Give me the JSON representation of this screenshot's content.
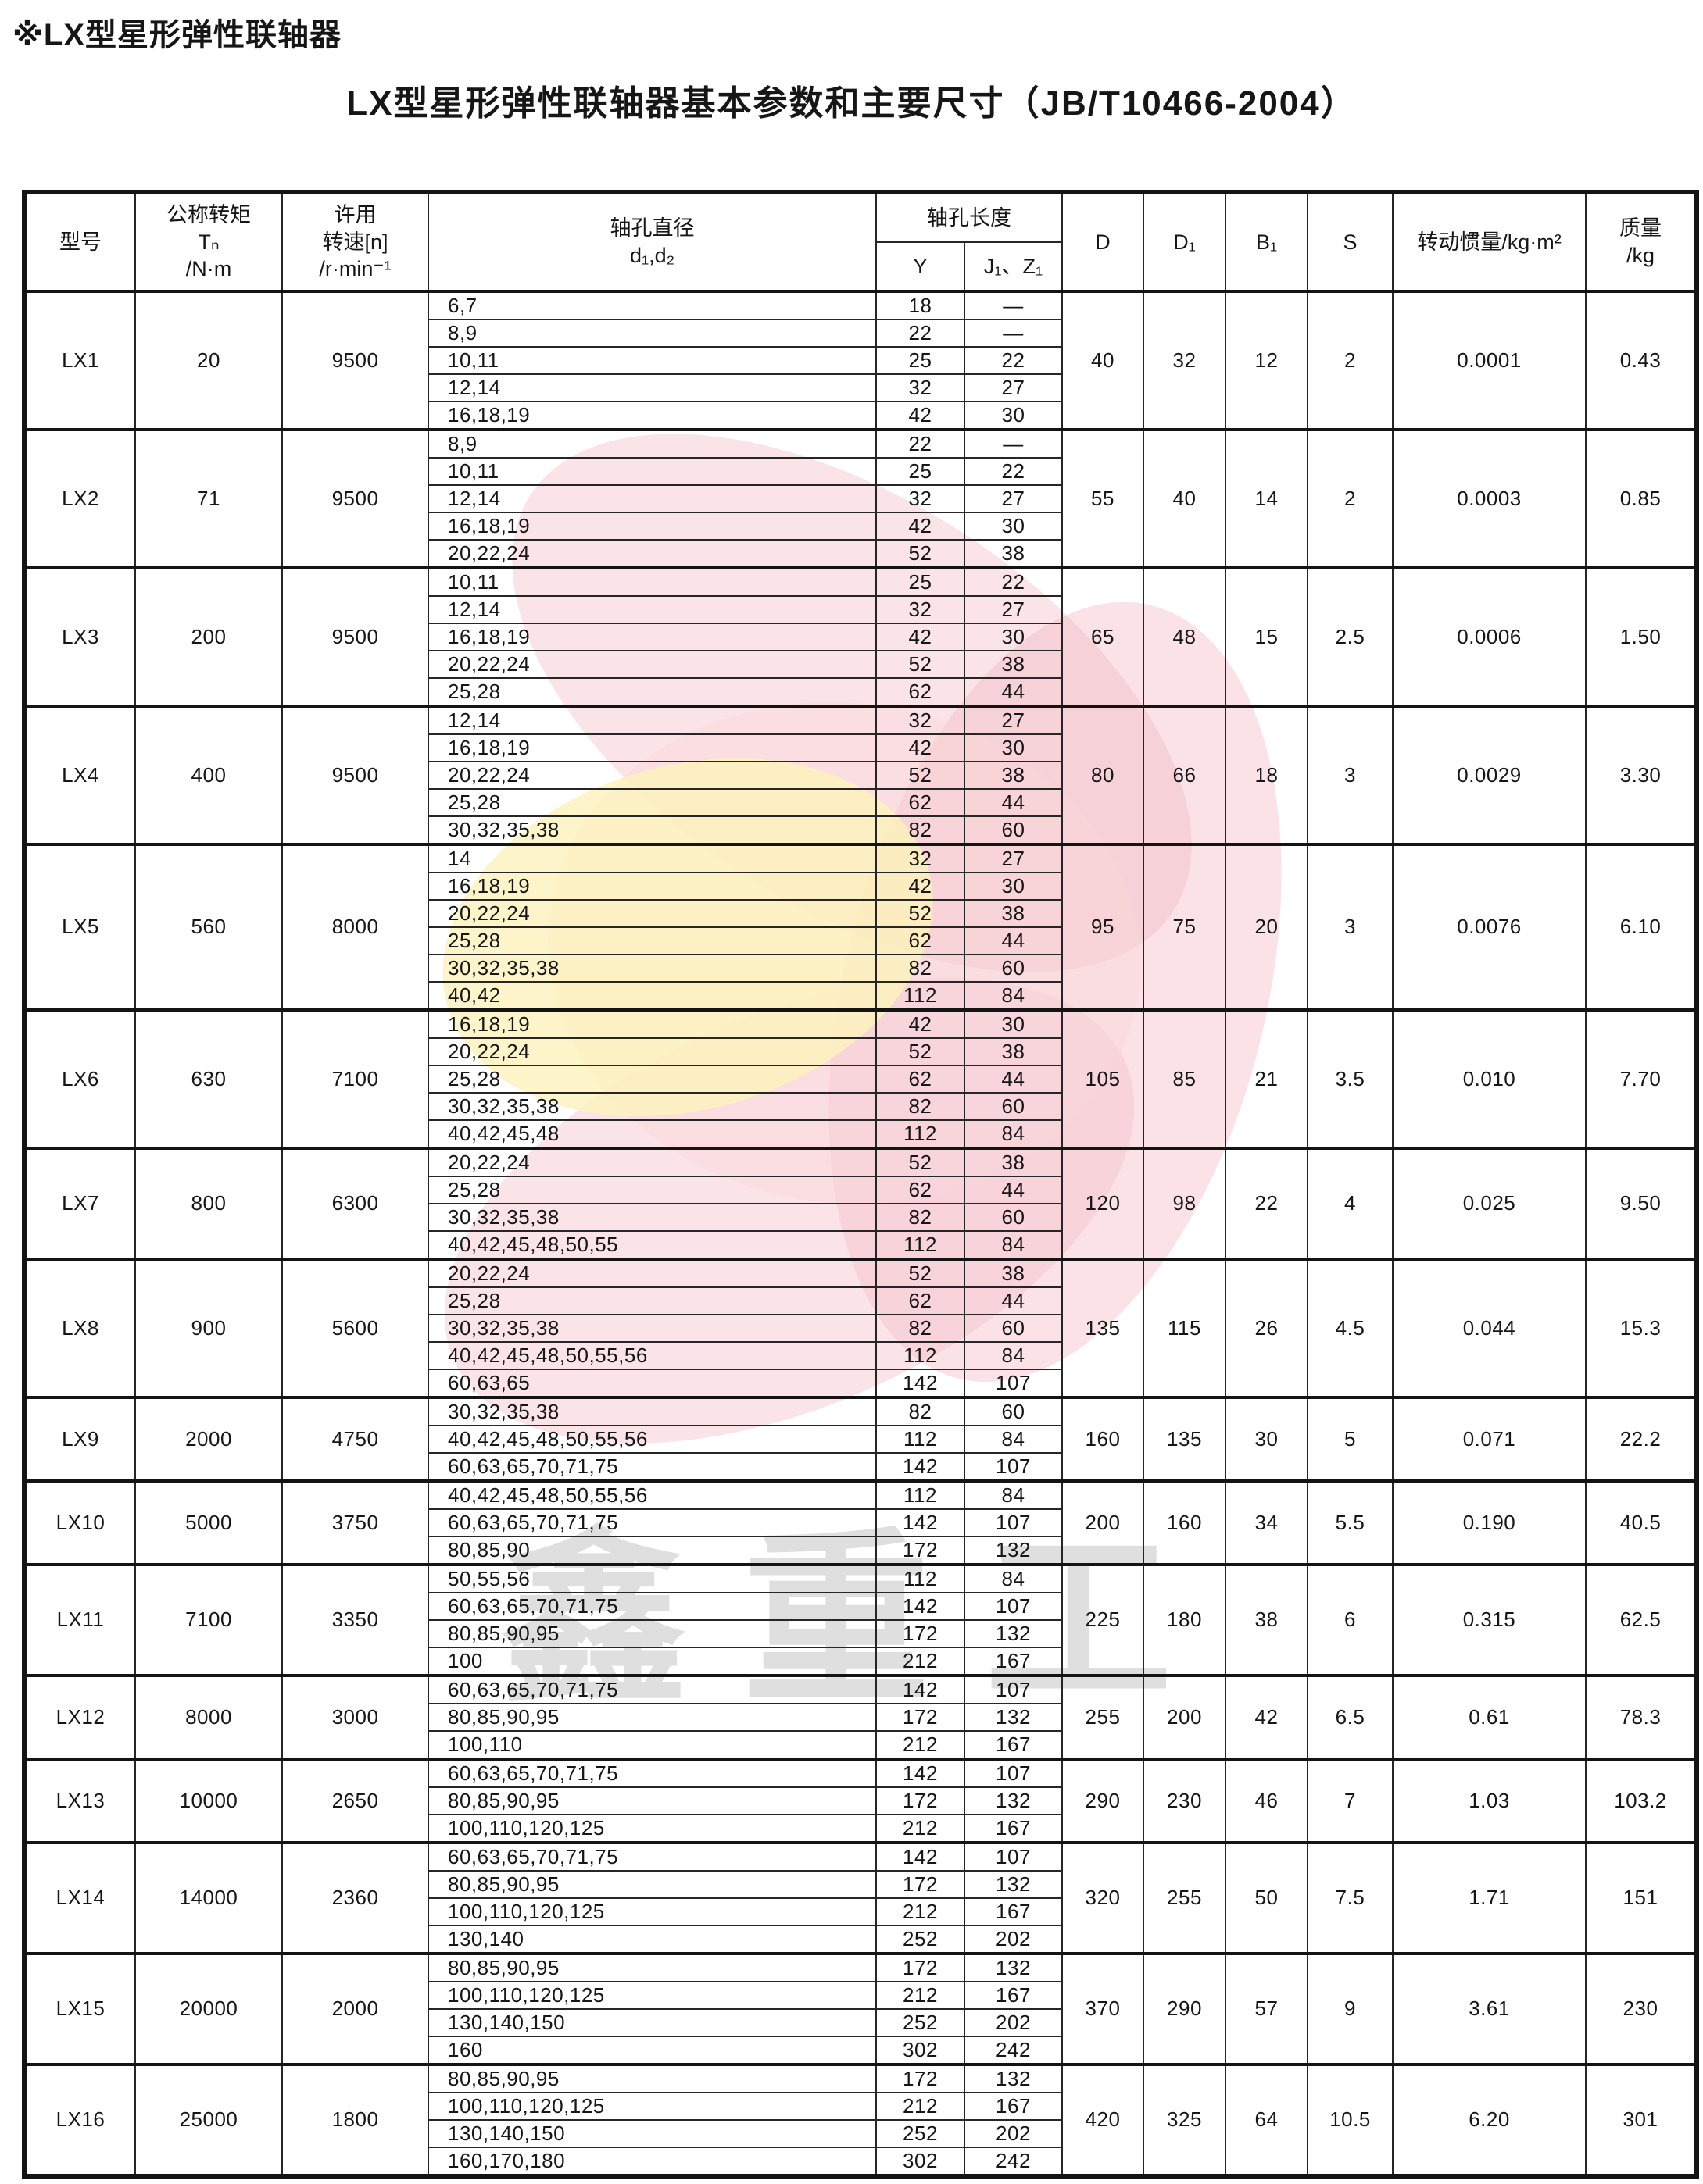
{
  "page": {
    "title": "※LX型星形弹性联轴器",
    "subtitle": "LX型星形弹性联轴器基本参数和主要尺寸（JB/T10466-2004）",
    "watermark_text": "鑫重工",
    "watermark_pink": "#f3b3be",
    "watermark_yellow": "#fcf2bb"
  },
  "table": {
    "headers": {
      "model": "型号",
      "torque": {
        "line1": "公称转矩",
        "line2": "Tₙ",
        "line3": "/N·m"
      },
      "speed": {
        "line1": "许用",
        "line2": "转速[n]",
        "line3": "/r·min⁻¹"
      },
      "bore_dia": {
        "line1": "轴孔直径",
        "line2": "d₁,d₂"
      },
      "bore_len": "轴孔长度",
      "len_y": "Y",
      "len_jz": "J₁、Z₁",
      "d": "D",
      "d1": "D₁",
      "b1": "B₁",
      "s": "S",
      "inertia": "转动惯量/kg·m²",
      "mass": {
        "line1": "质量",
        "line2": "/kg"
      }
    },
    "groups": [
      {
        "model": "LX1",
        "torque": "20",
        "speed": "9500",
        "D": "40",
        "D1": "32",
        "B1": "12",
        "S": "2",
        "inertia": "0.0001",
        "mass": "0.43",
        "rows": [
          [
            "6,7",
            "18",
            "—"
          ],
          [
            "8,9",
            "22",
            "—"
          ],
          [
            "10,11",
            "25",
            "22"
          ],
          [
            "12,14",
            "32",
            "27"
          ],
          [
            "16,18,19",
            "42",
            "30"
          ]
        ]
      },
      {
        "model": "LX2",
        "torque": "71",
        "speed": "9500",
        "D": "55",
        "D1": "40",
        "B1": "14",
        "S": "2",
        "inertia": "0.0003",
        "mass": "0.85",
        "rows": [
          [
            "8,9",
            "22",
            "—"
          ],
          [
            "10,11",
            "25",
            "22"
          ],
          [
            "12,14",
            "32",
            "27"
          ],
          [
            "16,18,19",
            "42",
            "30"
          ],
          [
            "20,22,24",
            "52",
            "38"
          ]
        ]
      },
      {
        "model": "LX3",
        "torque": "200",
        "speed": "9500",
        "D": "65",
        "D1": "48",
        "B1": "15",
        "S": "2.5",
        "inertia": "0.0006",
        "mass": "1.50",
        "rows": [
          [
            "10,11",
            "25",
            "22"
          ],
          [
            "12,14",
            "32",
            "27"
          ],
          [
            "16,18,19",
            "42",
            "30"
          ],
          [
            "20,22,24",
            "52",
            "38"
          ],
          [
            "25,28",
            "62",
            "44"
          ]
        ]
      },
      {
        "model": "LX4",
        "torque": "400",
        "speed": "9500",
        "D": "80",
        "D1": "66",
        "B1": "18",
        "S": "3",
        "inertia": "0.0029",
        "mass": "3.30",
        "rows": [
          [
            "12,14",
            "32",
            "27"
          ],
          [
            "16,18,19",
            "42",
            "30"
          ],
          [
            "20,22,24",
            "52",
            "38"
          ],
          [
            "25,28",
            "62",
            "44"
          ],
          [
            "30,32,35,38",
            "82",
            "60"
          ]
        ]
      },
      {
        "model": "LX5",
        "torque": "560",
        "speed": "8000",
        "D": "95",
        "D1": "75",
        "B1": "20",
        "S": "3",
        "inertia": "0.0076",
        "mass": "6.10",
        "rows": [
          [
            "14",
            "32",
            "27"
          ],
          [
            "16,18,19",
            "42",
            "30"
          ],
          [
            "20,22,24",
            "52",
            "38"
          ],
          [
            "25,28",
            "62",
            "44"
          ],
          [
            "30,32,35,38",
            "82",
            "60"
          ],
          [
            "40,42",
            "112",
            "84"
          ]
        ]
      },
      {
        "model": "LX6",
        "torque": "630",
        "speed": "7100",
        "D": "105",
        "D1": "85",
        "B1": "21",
        "S": "3.5",
        "inertia": "0.010",
        "mass": "7.70",
        "rows": [
          [
            "16,18,19",
            "42",
            "30"
          ],
          [
            "20,22,24",
            "52",
            "38"
          ],
          [
            "25,28",
            "62",
            "44"
          ],
          [
            "30,32,35,38",
            "82",
            "60"
          ],
          [
            "40,42,45,48",
            "112",
            "84"
          ]
        ]
      },
      {
        "model": "LX7",
        "torque": "800",
        "speed": "6300",
        "D": "120",
        "D1": "98",
        "B1": "22",
        "S": "4",
        "inertia": "0.025",
        "mass": "9.50",
        "rows": [
          [
            "20,22,24",
            "52",
            "38"
          ],
          [
            "25,28",
            "62",
            "44"
          ],
          [
            "30,32,35,38",
            "82",
            "60"
          ],
          [
            "40,42,45,48,50,55",
            "112",
            "84"
          ]
        ]
      },
      {
        "model": "LX8",
        "torque": "900",
        "speed": "5600",
        "D": "135",
        "D1": "115",
        "B1": "26",
        "S": "4.5",
        "inertia": "0.044",
        "mass": "15.3",
        "rows": [
          [
            "20,22,24",
            "52",
            "38"
          ],
          [
            "25,28",
            "62",
            "44"
          ],
          [
            "30,32,35,38",
            "82",
            "60"
          ],
          [
            "40,42,45,48,50,55,56",
            "112",
            "84"
          ],
          [
            "60,63,65",
            "142",
            "107"
          ]
        ]
      },
      {
        "model": "LX9",
        "torque": "2000",
        "speed": "4750",
        "D": "160",
        "D1": "135",
        "B1": "30",
        "S": "5",
        "inertia": "0.071",
        "mass": "22.2",
        "rows": [
          [
            "30,32,35,38",
            "82",
            "60"
          ],
          [
            "40,42,45,48,50,55,56",
            "112",
            "84"
          ],
          [
            "60,63,65,70,71,75",
            "142",
            "107"
          ]
        ]
      },
      {
        "model": "LX10",
        "torque": "5000",
        "speed": "3750",
        "D": "200",
        "D1": "160",
        "B1": "34",
        "S": "5.5",
        "inertia": "0.190",
        "mass": "40.5",
        "rows": [
          [
            "40,42,45,48,50,55,56",
            "112",
            "84"
          ],
          [
            "60,63,65,70,71,75",
            "142",
            "107"
          ],
          [
            "80,85,90",
            "172",
            "132"
          ]
        ]
      },
      {
        "model": "LX11",
        "torque": "7100",
        "speed": "3350",
        "D": "225",
        "D1": "180",
        "B1": "38",
        "S": "6",
        "inertia": "0.315",
        "mass": "62.5",
        "rows": [
          [
            "50,55,56",
            "112",
            "84"
          ],
          [
            "60,63,65,70,71,75",
            "142",
            "107"
          ],
          [
            "80,85,90,95",
            "172",
            "132"
          ],
          [
            "100",
            "212",
            "167"
          ]
        ]
      },
      {
        "model": "LX12",
        "torque": "8000",
        "speed": "3000",
        "D": "255",
        "D1": "200",
        "B1": "42",
        "S": "6.5",
        "inertia": "0.61",
        "mass": "78.3",
        "rows": [
          [
            "60,63,65,70,71,75",
            "142",
            "107"
          ],
          [
            "80,85,90,95",
            "172",
            "132"
          ],
          [
            "100,110",
            "212",
            "167"
          ]
        ]
      },
      {
        "model": "LX13",
        "torque": "10000",
        "speed": "2650",
        "D": "290",
        "D1": "230",
        "B1": "46",
        "S": "7",
        "inertia": "1.03",
        "mass": "103.2",
        "rows": [
          [
            "60,63,65,70,71,75",
            "142",
            "107"
          ],
          [
            "80,85,90,95",
            "172",
            "132"
          ],
          [
            "100,110,120,125",
            "212",
            "167"
          ]
        ]
      },
      {
        "model": "LX14",
        "torque": "14000",
        "speed": "2360",
        "D": "320",
        "D1": "255",
        "B1": "50",
        "S": "7.5",
        "inertia": "1.71",
        "mass": "151",
        "rows": [
          [
            "60,63,65,70,71,75",
            "142",
            "107"
          ],
          [
            "80,85,90,95",
            "172",
            "132"
          ],
          [
            "100,110,120,125",
            "212",
            "167"
          ],
          [
            "130,140",
            "252",
            "202"
          ]
        ]
      },
      {
        "model": "LX15",
        "torque": "20000",
        "speed": "2000",
        "D": "370",
        "D1": "290",
        "B1": "57",
        "S": "9",
        "inertia": "3.61",
        "mass": "230",
        "rows": [
          [
            "80,85,90,95",
            "172",
            "132"
          ],
          [
            "100,110,120,125",
            "212",
            "167"
          ],
          [
            "130,140,150",
            "252",
            "202"
          ],
          [
            "160",
            "302",
            "242"
          ]
        ]
      },
      {
        "model": "LX16",
        "torque": "25000",
        "speed": "1800",
        "D": "420",
        "D1": "325",
        "B1": "64",
        "S": "10.5",
        "inertia": "6.20",
        "mass": "301",
        "rows": [
          [
            "80,85,90,95",
            "172",
            "132"
          ],
          [
            "100,110,120,125",
            "212",
            "167"
          ],
          [
            "130,140,150",
            "252",
            "202"
          ],
          [
            "160,170,180",
            "302",
            "242"
          ]
        ]
      }
    ]
  }
}
